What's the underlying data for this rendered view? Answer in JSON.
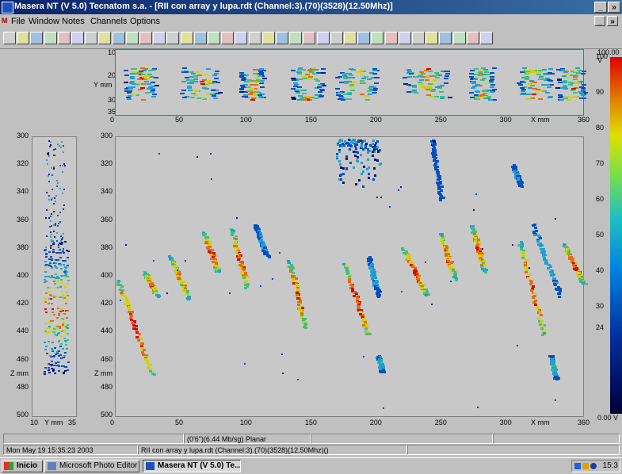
{
  "window": {
    "title": "Masera NT (V 5.0) Tecnatom s.a. - [RII con array y lupa.rdt (Channel:3).(70)(3528)(12.50Mhz)]",
    "min": "_",
    "restore": "»",
    "close": "×"
  },
  "menu": [
    "File",
    "Window",
    "Notes",
    "Channels",
    "Options"
  ],
  "toolbar_count": 36,
  "top_plot": {
    "y_unit": "Y mm",
    "x_unit": "X mm",
    "y_ticks": [
      "10",
      "20",
      "30",
      "35"
    ],
    "x_ticks": [
      "0",
      "50",
      "100",
      "150",
      "200",
      "250",
      "300",
      "360"
    ]
  },
  "main_plot": {
    "y_ticks": [
      "300",
      "320",
      "340",
      "360",
      "380",
      "400",
      "420",
      "440",
      "460",
      "480",
      "500"
    ],
    "x_ticks": [
      "0",
      "50",
      "100",
      "150",
      "200",
      "250",
      "300",
      "360"
    ],
    "x_unit": "X mm",
    "z_unit": "Z mm"
  },
  "side_plot": {
    "y_ticks": [
      "300",
      "320",
      "340",
      "360",
      "380",
      "400",
      "420",
      "440",
      "460",
      "480",
      "500"
    ],
    "x_ticks": [
      "10",
      "35"
    ],
    "x_unit": "Y mm",
    "z_unit": "Z mm"
  },
  "colorbar": {
    "top": "100.00 V",
    "ticks": [
      "100",
      "90",
      "80",
      "70",
      "60",
      "50",
      "40",
      "30",
      "24"
    ],
    "bottom": "0.00 V"
  },
  "status": {
    "line1": "(0'6\")(6.44 Mb/sg) Planar",
    "datetime": "Mon May 19 15:35:23 2003",
    "file": "RII con array y lupa.rdt (Channel:3).(70)(3528)(12.50Mhz)()"
  },
  "taskbar": {
    "start": "Inicio",
    "items": [
      "Microsoft Photo Editor",
      "Masera NT (V 5.0) Te..."
    ],
    "clock": "15:3"
  }
}
